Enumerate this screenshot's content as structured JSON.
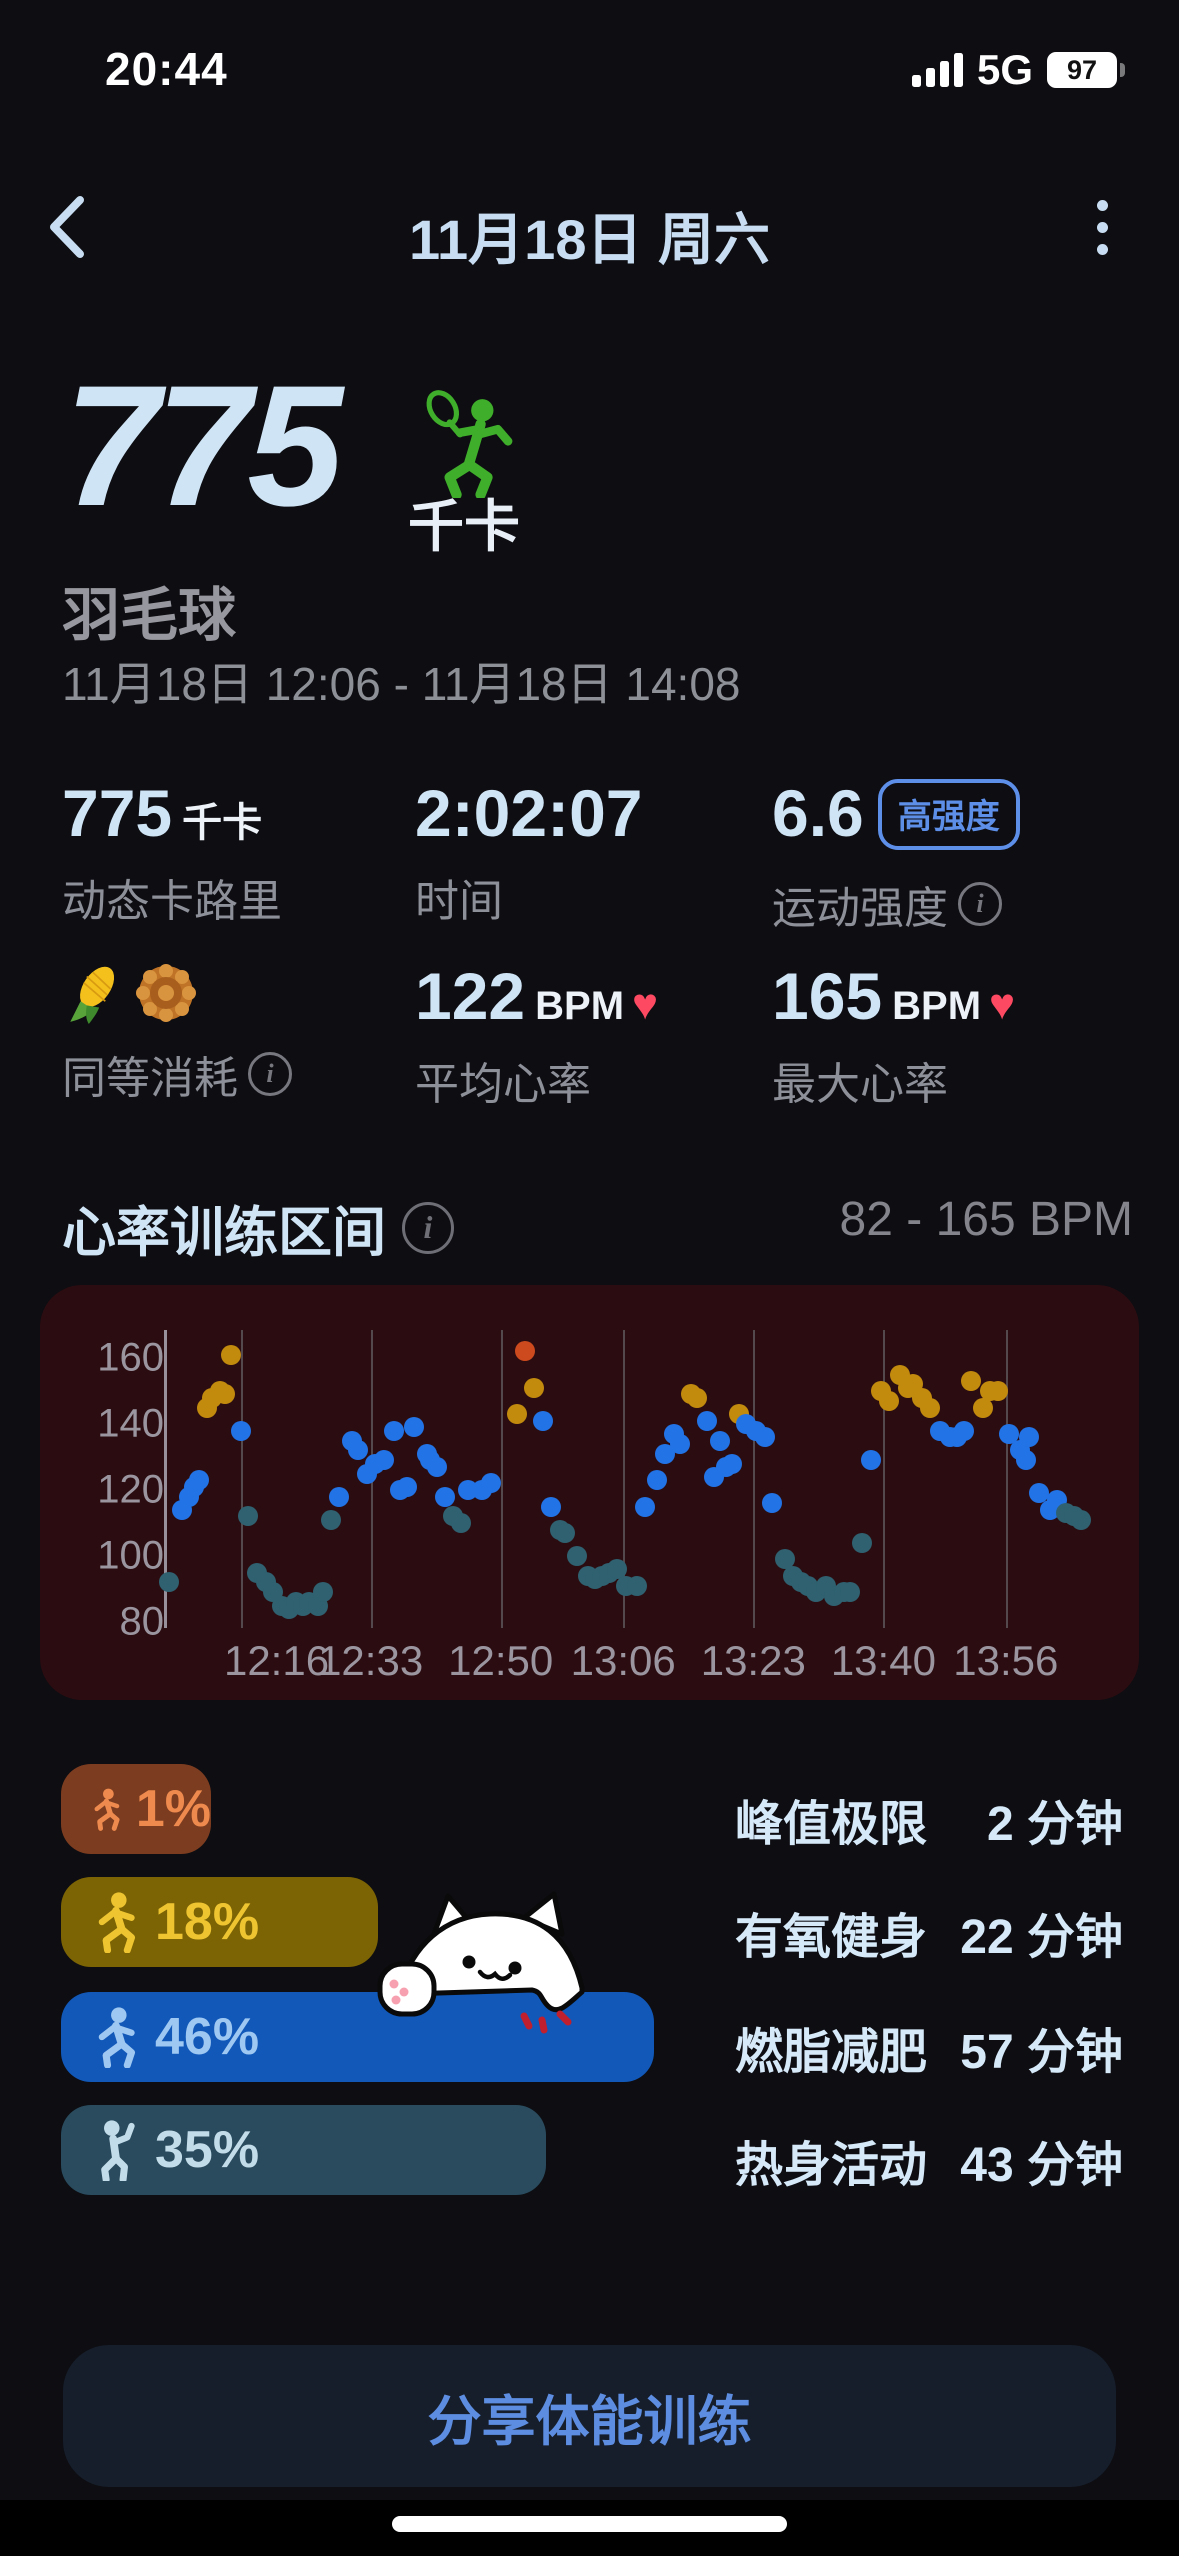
{
  "status_bar": {
    "time": "20:44",
    "network": "5G",
    "battery": "97"
  },
  "nav": {
    "title": "11月18日 周六"
  },
  "hero": {
    "calories": "775",
    "unit": "千卡",
    "activity": "羽毛球",
    "range": "11月18日 12:06 - 11月18日 14:08"
  },
  "stats": {
    "cal": {
      "value": "775",
      "unit": "千卡",
      "label": "动态卡路里"
    },
    "time": {
      "value": "2:02:07",
      "label": "时间"
    },
    "intensity": {
      "value": "6.6",
      "badge": "高强度",
      "label": "运动强度"
    },
    "equiv": {
      "label": "同等消耗"
    },
    "avg_hr": {
      "value": "122",
      "unit": "BPM",
      "label": "平均心率"
    },
    "max_hr": {
      "value": "165",
      "unit": "BPM",
      "label": "最大心率"
    }
  },
  "hr_section": {
    "title": "心率训练区间",
    "range": "82 - 165 BPM"
  },
  "chart_data": {
    "type": "scatter",
    "title": "心率训练区间",
    "ylabel": "BPM",
    "y_axis": {
      "ticks": [
        160,
        140,
        120,
        100,
        80
      ],
      "range": [
        75,
        170
      ]
    },
    "x_axis": {
      "start_time": "12:06",
      "end_time": "14:08",
      "tick_labels": [
        "12:16",
        "12:33",
        "12:50",
        "13:06",
        "13:23",
        "13:40",
        "13:56"
      ],
      "tick_minutes": [
        10,
        27,
        44,
        60,
        77,
        94,
        110
      ]
    },
    "grid": "vertical-only",
    "zone_colors": {
      "peak": "#cc4a1d",
      "aerobic": "#c38b0e",
      "fat": "#2273e6",
      "warm": "#2f6170"
    },
    "points": [
      [
        0.6,
        92,
        "warm"
      ],
      [
        2.3,
        114,
        "fat"
      ],
      [
        3.3,
        118,
        "fat"
      ],
      [
        3.9,
        121,
        "fat"
      ],
      [
        4.6,
        123,
        "fat"
      ],
      [
        5.6,
        145,
        "aerobic"
      ],
      [
        6.3,
        148,
        "aerobic"
      ],
      [
        7.3,
        150,
        "aerobic"
      ],
      [
        7.9,
        149,
        "aerobic"
      ],
      [
        8.8,
        161,
        "aerobic"
      ],
      [
        10,
        138,
        "fat"
      ],
      [
        11,
        112,
        "warm"
      ],
      [
        12.2,
        95,
        "warm"
      ],
      [
        13.3,
        92,
        "warm"
      ],
      [
        14.2,
        89,
        "warm"
      ],
      [
        15.4,
        85,
        "warm"
      ],
      [
        16.3,
        84,
        "warm"
      ],
      [
        17.2,
        86,
        "warm"
      ],
      [
        18.1,
        85,
        "warm"
      ],
      [
        19,
        86,
        "warm"
      ],
      [
        20.1,
        85,
        "warm"
      ],
      [
        20.8,
        89,
        "warm"
      ],
      [
        21.8,
        111,
        "warm"
      ],
      [
        22.9,
        118,
        "fat"
      ],
      [
        24.5,
        135,
        "fat"
      ],
      [
        25.3,
        132,
        "fat"
      ],
      [
        26.5,
        125,
        "fat"
      ],
      [
        27.6,
        128,
        "fat"
      ],
      [
        28.7,
        129,
        "fat"
      ],
      [
        30,
        138,
        "fat"
      ],
      [
        30.8,
        120,
        "fat"
      ],
      [
        31.7,
        121,
        "fat"
      ],
      [
        32.7,
        139,
        "fat"
      ],
      [
        34.3,
        131,
        "fat"
      ],
      [
        34.8,
        129,
        "fat"
      ],
      [
        35.7,
        127,
        "fat"
      ],
      [
        36.7,
        118,
        "fat"
      ],
      [
        37.7,
        112,
        "warm"
      ],
      [
        38.8,
        110,
        "warm"
      ],
      [
        39.7,
        120,
        "fat"
      ],
      [
        41.6,
        120,
        "fat"
      ],
      [
        42.7,
        122,
        "fat"
      ],
      [
        46.1,
        143,
        "aerobic"
      ],
      [
        47.1,
        162,
        "peak"
      ],
      [
        48.4,
        151,
        "aerobic"
      ],
      [
        49.5,
        141,
        "fat"
      ],
      [
        50.5,
        115,
        "fat"
      ],
      [
        51.7,
        108,
        "warm"
      ],
      [
        52.4,
        107,
        "warm"
      ],
      [
        53.9,
        100,
        "warm"
      ],
      [
        55.4,
        94,
        "warm"
      ],
      [
        56.3,
        93,
        "warm"
      ],
      [
        57.2,
        94,
        "warm"
      ],
      [
        58.2,
        95,
        "warm"
      ],
      [
        59.2,
        96,
        "warm"
      ],
      [
        60.3,
        91,
        "warm"
      ],
      [
        61.8,
        91,
        "warm"
      ],
      [
        62.9,
        115,
        "fat"
      ],
      [
        64.4,
        123,
        "fat"
      ],
      [
        65.4,
        131,
        "fat"
      ],
      [
        66.6,
        137,
        "fat"
      ],
      [
        67.4,
        134,
        "fat"
      ],
      [
        68.8,
        149,
        "aerobic"
      ],
      [
        69.7,
        148,
        "aerobic"
      ],
      [
        70.9,
        141,
        "fat"
      ],
      [
        71.8,
        124,
        "fat"
      ],
      [
        72.7,
        135,
        "fat"
      ],
      [
        73.4,
        127,
        "fat"
      ],
      [
        74.2,
        128,
        "fat"
      ],
      [
        75.1,
        143,
        "aerobic"
      ],
      [
        76.1,
        140,
        "fat"
      ],
      [
        77.3,
        138,
        "fat"
      ],
      [
        78.5,
        136,
        "fat"
      ],
      [
        79.5,
        116,
        "fat"
      ],
      [
        81.1,
        99,
        "warm"
      ],
      [
        82.2,
        94,
        "warm"
      ],
      [
        83.2,
        92,
        "warm"
      ],
      [
        84.1,
        91,
        "warm"
      ],
      [
        85.2,
        89,
        "warm"
      ],
      [
        86.5,
        91,
        "warm"
      ],
      [
        87.6,
        88,
        "warm"
      ],
      [
        88.8,
        89,
        "warm"
      ],
      [
        89.6,
        89,
        "warm"
      ],
      [
        91.2,
        104,
        "warm"
      ],
      [
        92.4,
        129,
        "fat"
      ],
      [
        93.7,
        150,
        "aerobic"
      ],
      [
        94.7,
        147,
        "aerobic"
      ],
      [
        96.1,
        155,
        "aerobic"
      ],
      [
        97.2,
        151,
        "aerobic"
      ],
      [
        97.8,
        152,
        "aerobic"
      ],
      [
        99.1,
        148,
        "aerobic"
      ],
      [
        100.1,
        145,
        "aerobic"
      ],
      [
        101.4,
        138,
        "fat"
      ],
      [
        102.7,
        136,
        "fat"
      ],
      [
        103.6,
        136,
        "fat"
      ],
      [
        104.5,
        138,
        "fat"
      ],
      [
        105.5,
        153,
        "aerobic"
      ],
      [
        107,
        145,
        "aerobic"
      ],
      [
        107.9,
        150,
        "aerobic"
      ],
      [
        109,
        150,
        "aerobic"
      ],
      [
        110.4,
        137,
        "fat"
      ],
      [
        111.8,
        132,
        "fat"
      ],
      [
        112.6,
        129,
        "fat"
      ],
      [
        113,
        136,
        "fat"
      ],
      [
        114.3,
        119,
        "fat"
      ],
      [
        115.7,
        114,
        "fat"
      ],
      [
        116.7,
        117,
        "fat"
      ],
      [
        117.8,
        113,
        "warm"
      ],
      [
        118.9,
        112,
        "warm"
      ],
      [
        119.8,
        111,
        "warm"
      ]
    ]
  },
  "zones": [
    {
      "pct": 1,
      "pct_label": "1%",
      "name": "峰值极限",
      "duration": "2 分钟",
      "bar_color": "#7c3c1f",
      "text_color": "#ee8a4e"
    },
    {
      "pct": 18,
      "pct_label": "18%",
      "name": "有氧健身",
      "duration": "22 分钟",
      "bar_color": "#7c6304",
      "text_color": "#eec531"
    },
    {
      "pct": 46,
      "pct_label": "46%",
      "name": "燃脂减肥",
      "duration": "57 分钟",
      "bar_color": "#1158b8",
      "text_color": "#9ec7f2"
    },
    {
      "pct": 35,
      "pct_label": "35%",
      "name": "热身活动",
      "duration": "43 分钟",
      "bar_color": "#294b5d",
      "text_color": "#c3dcea"
    }
  ],
  "share_button": {
    "label": "分享体能训练"
  }
}
